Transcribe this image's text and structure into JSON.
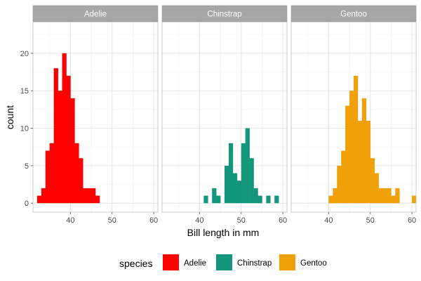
{
  "chart_data": {
    "type": "bar",
    "title": "",
    "xlabel": "Bill length in mm",
    "ylabel": "count",
    "xlim": [
      31,
      61
    ],
    "ylim": [
      -1.2,
      24.2
    ],
    "xticks": [
      40,
      50,
      60
    ],
    "yticks": [
      0,
      5,
      10,
      15,
      20
    ],
    "grid": true,
    "legend_position": "bottom",
    "legend_title": "species",
    "bin_start": 32,
    "bin_width": 1,
    "series": [
      {
        "name": "Adelie",
        "color": "#ff0000",
        "values": [
          1,
          2,
          7,
          8,
          18,
          15,
          20,
          17,
          14,
          8,
          6,
          2,
          2,
          2,
          1
        ]
      },
      {
        "name": "Chinstrap",
        "color": "#14967a",
        "values": [
          0,
          0,
          0,
          0,
          0,
          0,
          0,
          0,
          0,
          1,
          0,
          2,
          1,
          0,
          5,
          8,
          4,
          3,
          8,
          10,
          6,
          2,
          1,
          0,
          1,
          0,
          1
        ]
      },
      {
        "name": "Gentoo",
        "color": "#f0a008",
        "values": [
          0,
          0,
          0,
          0,
          0,
          0,
          0,
          0,
          1,
          2,
          5,
          7,
          13,
          15,
          17,
          11,
          14,
          11,
          6,
          4,
          2,
          2,
          2,
          1,
          2,
          0,
          0,
          0,
          1
        ]
      }
    ]
  }
}
